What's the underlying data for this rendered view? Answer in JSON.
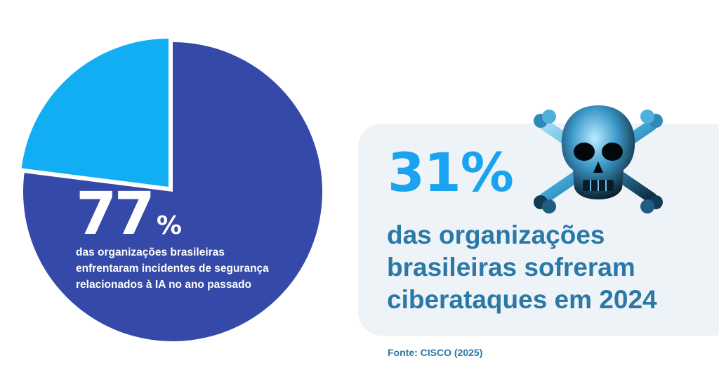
{
  "chart_data": {
    "type": "pie",
    "slices": [
      {
        "label": "incidentes de segurança relacionados à IA",
        "value": 77,
        "color": "#3449a8"
      },
      {
        "label": "",
        "value": 23,
        "color": "#12aef4"
      }
    ]
  },
  "left_stat": {
    "number": "77",
    "percent_sign": "%",
    "lines": [
      "das organizações brasileiras",
      "enfrentaram incidentes de segurança",
      "relacionados à IA no ano passado"
    ]
  },
  "right_stat": {
    "value": "31%",
    "lines": [
      "das organizações",
      "brasileiras sofreram",
      "ciberataques em 2024"
    ],
    "icon": "skull-crossbones-icon"
  },
  "source": "Fonte: CISCO (2025)",
  "colors": {
    "pie_main": "#3449a8",
    "pie_secondary": "#12aef4",
    "accent_number": "#1aa3f0",
    "text_blue": "#2a78a8",
    "card_bg": "#eef3f7"
  }
}
